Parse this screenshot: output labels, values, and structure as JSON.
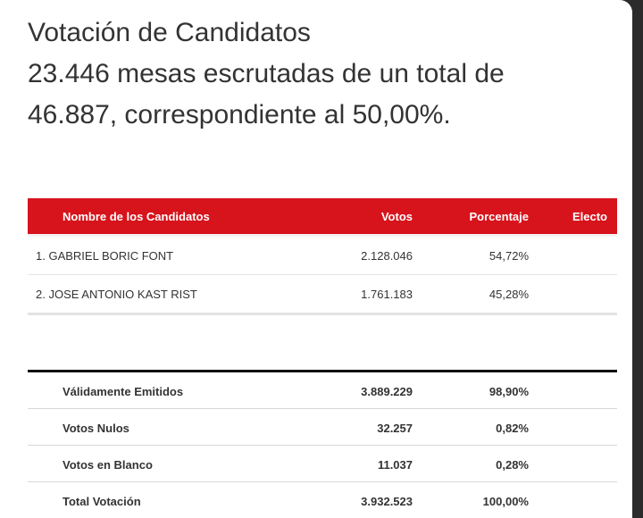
{
  "heading": {
    "line1": "Votación de Candidatos",
    "line2": "23.446 mesas escrutadas de un total de",
    "line3": "46.887, correspondiente al 50,00%."
  },
  "candidates_table": {
    "columns": {
      "name": "Nombre de los Candidatos",
      "votes": "Votos",
      "percentage": "Porcentaje",
      "elected": "Electo"
    },
    "header_color": "#d7131c",
    "rows": [
      {
        "name": "1. GABRIEL BORIC FONT",
        "votes": "2.128.046",
        "percentage": "54,72%",
        "elected": ""
      },
      {
        "name": "2. JOSE ANTONIO KAST RIST",
        "votes": "1.761.183",
        "percentage": "45,28%",
        "elected": ""
      }
    ]
  },
  "totals_table": {
    "rows": [
      {
        "label": "Válidamente Emitidos",
        "votes": "3.889.229",
        "percentage": "98,90%"
      },
      {
        "label": "Votos Nulos",
        "votes": "32.257",
        "percentage": "0,82%"
      },
      {
        "label": "Votos en Blanco",
        "votes": "11.037",
        "percentage": "0,28%"
      },
      {
        "label": "Total Votación",
        "votes": "3.932.523",
        "percentage": "100,00%"
      }
    ]
  }
}
